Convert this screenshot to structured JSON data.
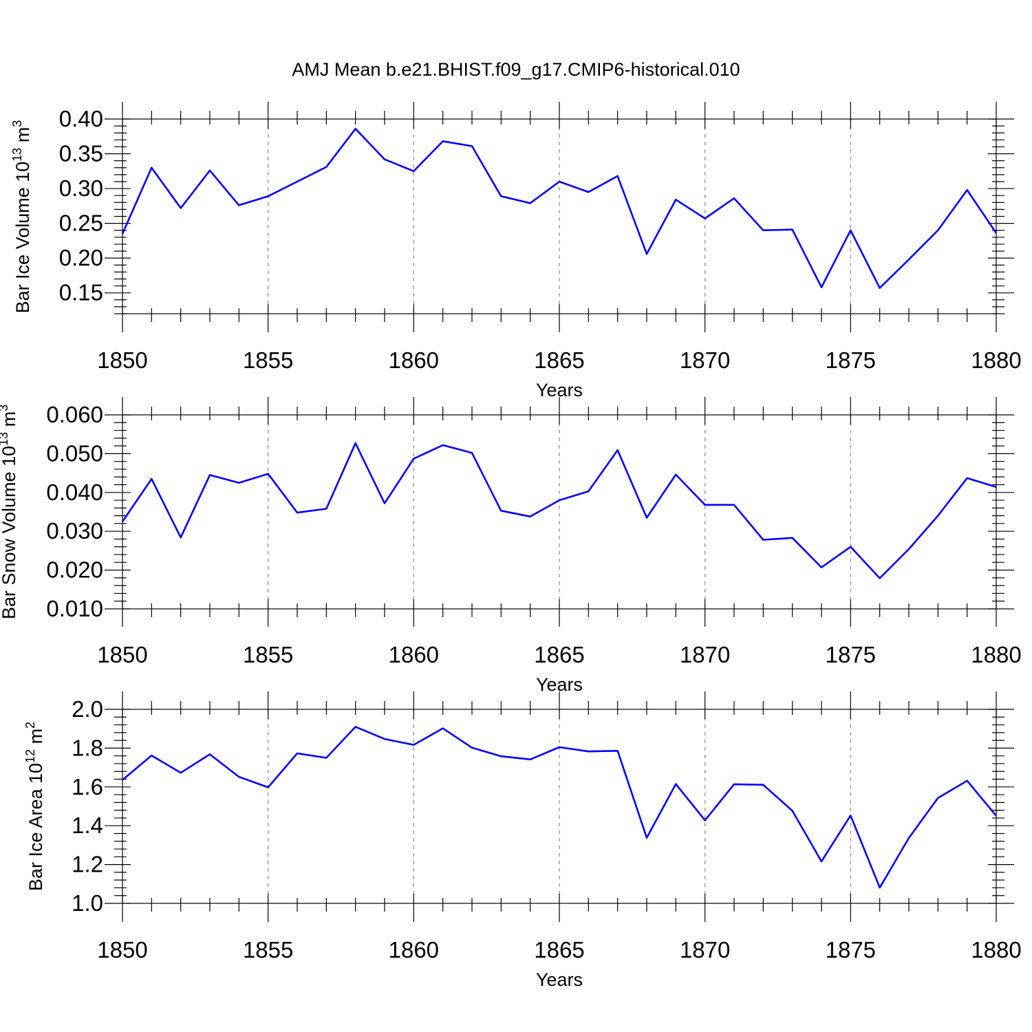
{
  "title": "AMJ Mean b.e21.BHIST.f09_g17.CMIP6-historical.010",
  "line_color": "#0000ff",
  "chart_data": [
    {
      "type": "line",
      "title": "AMJ Mean b.e21.BHIST.f09_g17.CMIP6-historical.010",
      "xlabel": "Years",
      "ylabel": {
        "text": "Bar Ice Volume 10",
        "exp1": "13",
        "mid": " m",
        "exp2": "3"
      },
      "xlim": [
        1850,
        1880
      ],
      "ylim": [
        0.12,
        0.4
      ],
      "x_ticks": [
        1850,
        1855,
        1860,
        1865,
        1870,
        1875,
        1880
      ],
      "x_tick_labels": [
        "1850",
        "1855",
        "1860",
        "1865",
        "1870",
        "1875",
        "1880"
      ],
      "y_ticks": [
        0.15,
        0.2,
        0.25,
        0.3,
        0.35,
        0.4
      ],
      "y_tick_labels": [
        "0.15",
        "0.20",
        "0.25",
        "0.30",
        "0.35",
        "0.40"
      ],
      "y_minor_step": 0.01,
      "grid": "vertical dashed at major x ticks",
      "x": [
        1850,
        1851,
        1852,
        1853,
        1854,
        1855,
        1856,
        1857,
        1858,
        1859,
        1860,
        1861,
        1862,
        1863,
        1864,
        1865,
        1866,
        1867,
        1868,
        1869,
        1870,
        1871,
        1872,
        1873,
        1874,
        1875,
        1876,
        1877,
        1878,
        1879,
        1880
      ],
      "series": [
        {
          "name": "Bar Ice Volume",
          "values": [
            0.235,
            0.33,
            0.272,
            0.326,
            0.276,
            0.289,
            0.31,
            0.331,
            0.386,
            0.342,
            0.325,
            0.368,
            0.361,
            0.289,
            0.279,
            0.31,
            0.295,
            0.318,
            0.206,
            0.284,
            0.257,
            0.286,
            0.24,
            0.241,
            0.158,
            0.24,
            0.157,
            0.198,
            0.24,
            0.298,
            0.236
          ]
        }
      ]
    },
    {
      "type": "line",
      "xlabel": "Years",
      "ylabel": {
        "text": "Bar Snow Volume 10",
        "exp1": "13",
        "mid": " m",
        "exp2": "3"
      },
      "xlim": [
        1850,
        1880
      ],
      "ylim": [
        0.01,
        0.06
      ],
      "x_ticks": [
        1850,
        1855,
        1860,
        1865,
        1870,
        1875,
        1880
      ],
      "x_tick_labels": [
        "1850",
        "1855",
        "1860",
        "1865",
        "1870",
        "1875",
        "1880"
      ],
      "y_ticks": [
        0.01,
        0.02,
        0.03,
        0.04,
        0.05,
        0.06
      ],
      "y_tick_labels": [
        "0.010",
        "0.020",
        "0.030",
        "0.040",
        "0.050",
        "0.060"
      ],
      "y_minor_step": 0.002,
      "grid": "vertical dashed at major x ticks",
      "x": [
        1850,
        1851,
        1852,
        1853,
        1854,
        1855,
        1856,
        1857,
        1858,
        1859,
        1860,
        1861,
        1862,
        1863,
        1864,
        1865,
        1866,
        1867,
        1868,
        1869,
        1870,
        1871,
        1872,
        1873,
        1874,
        1875,
        1876,
        1877,
        1878,
        1879,
        1880
      ],
      "series": [
        {
          "name": "Bar Snow Volume",
          "values": [
            0.0325,
            0.0435,
            0.0284,
            0.0445,
            0.0425,
            0.0448,
            0.0348,
            0.0358,
            0.0527,
            0.0372,
            0.0487,
            0.0522,
            0.0502,
            0.0353,
            0.0338,
            0.038,
            0.0403,
            0.0509,
            0.0335,
            0.0446,
            0.0368,
            0.0368,
            0.0278,
            0.0283,
            0.0207,
            0.026,
            0.0179,
            0.0254,
            0.034,
            0.0437,
            0.0414
          ]
        }
      ]
    },
    {
      "type": "line",
      "xlabel": "Years",
      "ylabel": {
        "text": "Bar Ice Area 10",
        "exp1": "12",
        "mid": " m",
        "exp2": "2"
      },
      "xlim": [
        1850,
        1880
      ],
      "ylim": [
        1.0,
        2.0
      ],
      "x_ticks": [
        1850,
        1855,
        1860,
        1865,
        1870,
        1875,
        1880
      ],
      "x_tick_labels": [
        "1850",
        "1855",
        "1860",
        "1865",
        "1870",
        "1875",
        "1880"
      ],
      "y_ticks": [
        1.0,
        1.2,
        1.4,
        1.6,
        1.8,
        2.0
      ],
      "y_tick_labels": [
        "1.0",
        "1.2",
        "1.4",
        "1.6",
        "1.8",
        "2.0"
      ],
      "y_minor_step": 0.04,
      "grid": "vertical dashed at major x ticks",
      "x": [
        1850,
        1851,
        1852,
        1853,
        1854,
        1855,
        1856,
        1857,
        1858,
        1859,
        1860,
        1861,
        1862,
        1863,
        1864,
        1865,
        1866,
        1867,
        1868,
        1869,
        1870,
        1871,
        1872,
        1873,
        1874,
        1875,
        1876,
        1877,
        1878,
        1879,
        1880
      ],
      "series": [
        {
          "name": "Bar Ice Area",
          "values": [
            1.636,
            1.762,
            1.673,
            1.768,
            1.652,
            1.598,
            1.773,
            1.75,
            1.91,
            1.847,
            1.817,
            1.902,
            1.802,
            1.758,
            1.742,
            1.805,
            1.783,
            1.786,
            1.338,
            1.615,
            1.428,
            1.614,
            1.611,
            1.477,
            1.216,
            1.453,
            1.081,
            1.337,
            1.543,
            1.632,
            1.451
          ]
        }
      ]
    }
  ]
}
